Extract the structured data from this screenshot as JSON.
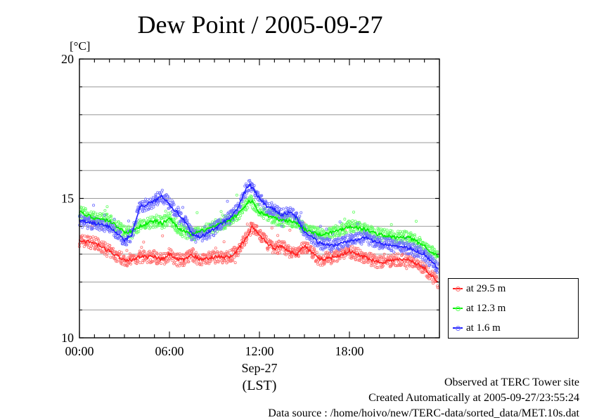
{
  "title": "Dew Point / 2005-09-27",
  "unit_label": "[°C]",
  "footer": {
    "line1": "Observed at TERC Tower site",
    "line2": "Created Automatically at 2005-09-27/23:55:24",
    "line3": "Data source : /home/hoivo/new/TERC-data/sorted_data/MET.10s.dat"
  },
  "chart_data": {
    "type": "line",
    "title": "Dew Point / 2005-09-27",
    "ylabel": "[°C]",
    "xlabel": "Sep-27 (LST)",
    "x_date": "Sep-27",
    "x_tz": "(LST)",
    "ylim": [
      10,
      20
    ],
    "xlim_hours": [
      0,
      24
    ],
    "y_ticks": [
      10,
      15,
      20
    ],
    "y_minor_gridlines": [
      11,
      12,
      13,
      14,
      16,
      17,
      18,
      19
    ],
    "x_ticks": [
      {
        "hour": 0,
        "label": "00:00"
      },
      {
        "hour": 6,
        "label": "06:00"
      },
      {
        "hour": 12,
        "label": "12:00"
      },
      {
        "hour": 18,
        "label": "18:00"
      }
    ],
    "grid": true,
    "legend_position": "right, below plot top",
    "x_hours": [
      0,
      1,
      2,
      3,
      3.5,
      4,
      5,
      5.5,
      6,
      6.5,
      7,
      7.5,
      8,
      9,
      10,
      10.5,
      11,
      11.3,
      11.5,
      12,
      12.5,
      13,
      13.5,
      14,
      14.5,
      15,
      16,
      17,
      18,
      19,
      20,
      21,
      22,
      23,
      23.9
    ],
    "series": [
      {
        "name": "at 29.5 m",
        "color": "#ff2020",
        "scatter_color": "#ff7070",
        "values": [
          13.5,
          13.4,
          13.1,
          12.8,
          12.8,
          12.9,
          12.9,
          12.8,
          13.0,
          12.8,
          12.8,
          13.0,
          12.8,
          12.9,
          12.9,
          13.1,
          13.5,
          13.7,
          14.0,
          13.7,
          13.4,
          13.2,
          13.3,
          13.1,
          13.0,
          13.3,
          12.8,
          12.9,
          13.1,
          12.9,
          12.7,
          12.8,
          12.8,
          12.5,
          12.0
        ]
      },
      {
        "name": "at 12.3 m",
        "color": "#00ee00",
        "scatter_color": "#66ff66",
        "values": [
          14.5,
          14.3,
          14.2,
          13.8,
          13.8,
          14.0,
          14.2,
          14.1,
          14.3,
          14.0,
          13.8,
          13.7,
          13.8,
          14.0,
          14.2,
          14.4,
          14.7,
          14.9,
          14.9,
          14.5,
          14.4,
          14.3,
          14.2,
          14.2,
          14.1,
          13.9,
          13.7,
          13.8,
          14.0,
          13.9,
          13.7,
          13.6,
          13.6,
          13.3,
          12.9
        ]
      },
      {
        "name": "at 1.6 m",
        "color": "#2020ff",
        "scatter_color": "#7070ff",
        "values": [
          14.2,
          14.1,
          14.0,
          13.5,
          13.7,
          14.7,
          14.9,
          15.1,
          14.8,
          14.5,
          14.2,
          13.7,
          13.6,
          13.9,
          14.3,
          14.6,
          15.2,
          15.5,
          15.4,
          15.0,
          14.7,
          14.6,
          14.4,
          14.5,
          14.3,
          13.8,
          13.4,
          13.3,
          13.5,
          13.6,
          13.4,
          13.3,
          13.2,
          13.0,
          12.5
        ]
      }
    ]
  }
}
